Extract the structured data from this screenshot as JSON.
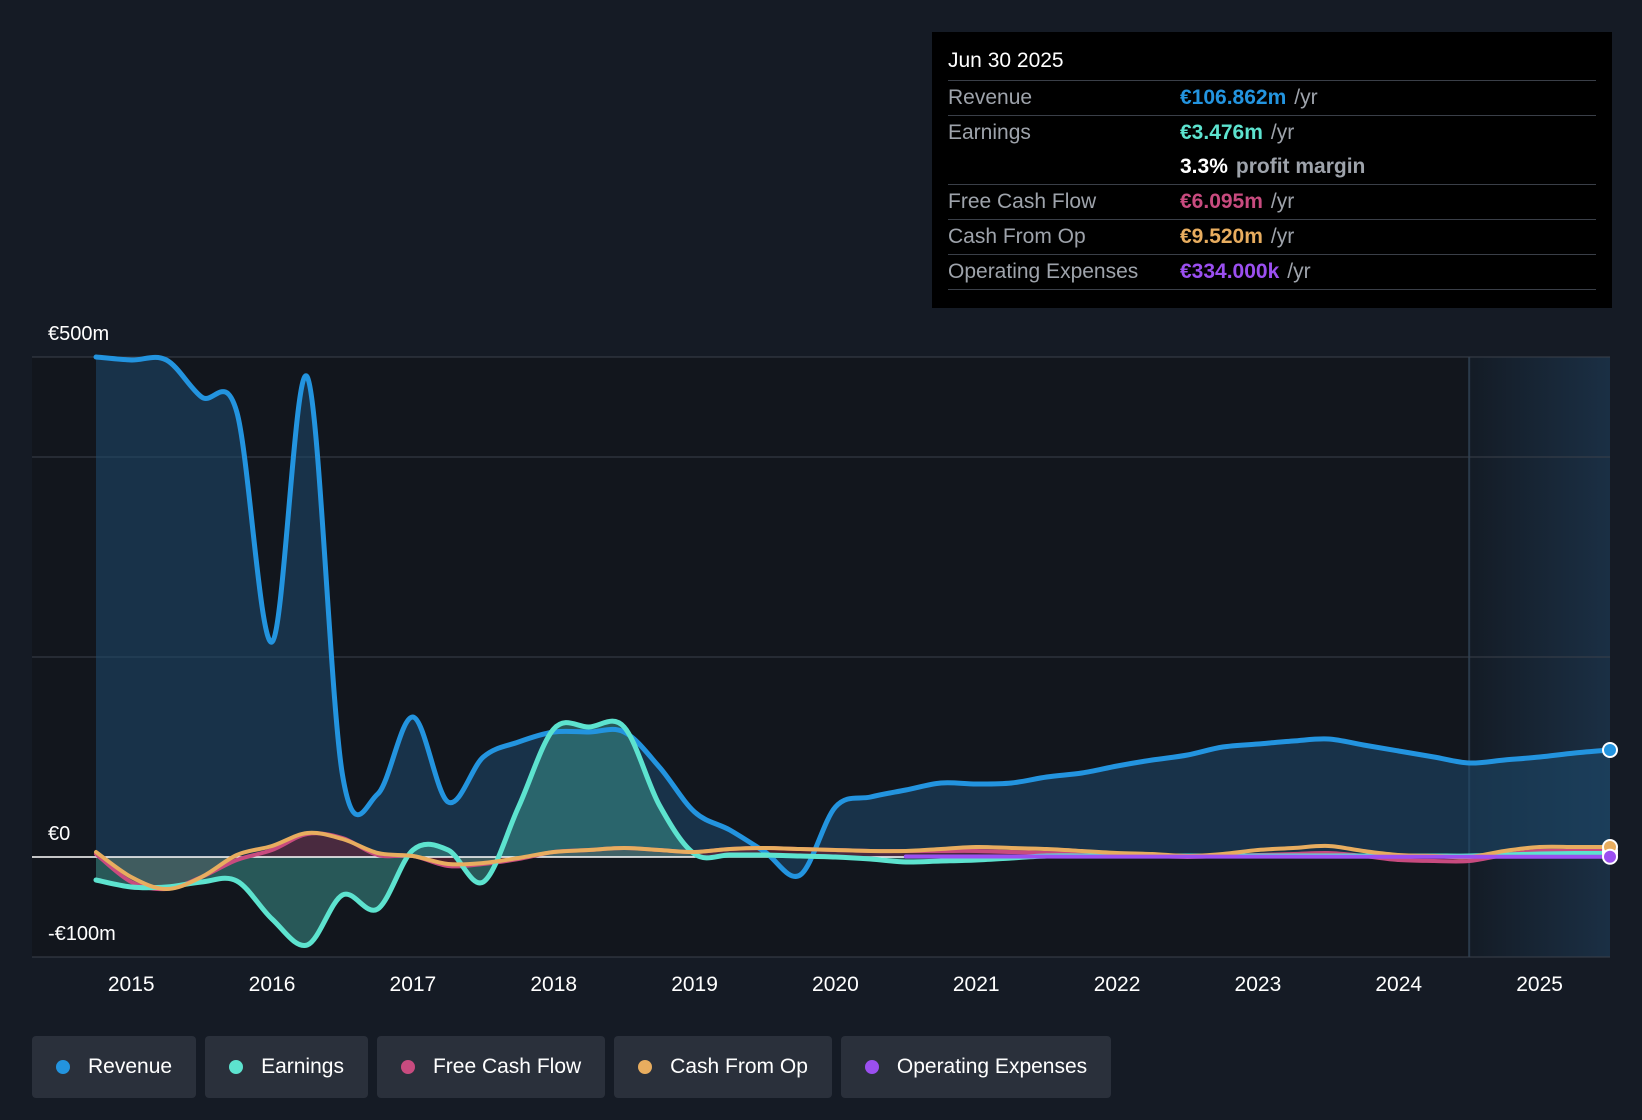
{
  "tooltip": {
    "date": "Jun 30 2025",
    "rows": [
      {
        "label": "Revenue",
        "value": "€106.862m",
        "unit": "/yr",
        "color": "#2394df"
      },
      {
        "label": "Earnings",
        "value": "€3.476m",
        "unit": "/yr",
        "color": "#5de3cf"
      },
      {
        "label": "",
        "value": "3.3%",
        "unit": "profit margin",
        "color": "#ffffff"
      },
      {
        "label": "Free Cash Flow",
        "value": "€6.095m",
        "unit": "/yr",
        "color": "#c84b7f"
      },
      {
        "label": "Cash From Op",
        "value": "€9.520m",
        "unit": "/yr",
        "color": "#e8ad5f"
      },
      {
        "label": "Operating Expenses",
        "value": "€334.000k",
        "unit": "/yr",
        "color": "#9b4ff0"
      }
    ]
  },
  "legend": [
    {
      "label": "Revenue",
      "color": "#2394df"
    },
    {
      "label": "Earnings",
      "color": "#5de3cf"
    },
    {
      "label": "Free Cash Flow",
      "color": "#c84b7f"
    },
    {
      "label": "Cash From Op",
      "color": "#e8ad5f"
    },
    {
      "label": "Operating Expenses",
      "color": "#9b4ff0"
    }
  ],
  "chart_data": {
    "type": "area",
    "xlabel": "",
    "ylabel": "",
    "ylim": [
      -100,
      500
    ],
    "xlim": [
      2014.75,
      2025.5
    ],
    "y_tick_labels": [
      {
        "value": 500,
        "label": "€500m"
      },
      {
        "value": 0,
        "label": "€0"
      },
      {
        "value": -100,
        "label": "-€100m"
      }
    ],
    "x_tick_labels": [
      "2015",
      "2016",
      "2017",
      "2018",
      "2019",
      "2020",
      "2021",
      "2022",
      "2023",
      "2024",
      "2025"
    ],
    "x_ticks": [
      2015,
      2016,
      2017,
      2018,
      2019,
      2020,
      2021,
      2022,
      2023,
      2024,
      2025
    ],
    "gridlines": [
      500,
      400,
      200,
      0,
      -100
    ],
    "forecast_shade_start": 2024.5,
    "series": [
      {
        "name": "Revenue",
        "color": "#2394df",
        "fill": true,
        "points": [
          [
            2014.75,
            500
          ],
          [
            2015,
            497
          ],
          [
            2015.25,
            497
          ],
          [
            2015.5,
            460
          ],
          [
            2015.75,
            445
          ],
          [
            2016,
            215
          ],
          [
            2016.25,
            480
          ],
          [
            2016.5,
            82
          ],
          [
            2016.75,
            63
          ],
          [
            2017,
            140
          ],
          [
            2017.25,
            55
          ],
          [
            2017.5,
            100
          ],
          [
            2017.75,
            115
          ],
          [
            2018,
            125
          ],
          [
            2018.25,
            125
          ],
          [
            2018.5,
            125
          ],
          [
            2018.75,
            90
          ],
          [
            2019,
            45
          ],
          [
            2019.25,
            27
          ],
          [
            2019.5,
            5
          ],
          [
            2019.75,
            -18
          ],
          [
            2020,
            50
          ],
          [
            2020.25,
            60
          ],
          [
            2020.5,
            67
          ],
          [
            2020.75,
            74
          ],
          [
            2021,
            73
          ],
          [
            2021.25,
            74
          ],
          [
            2021.5,
            80
          ],
          [
            2021.75,
            84
          ],
          [
            2022,
            91
          ],
          [
            2022.25,
            97
          ],
          [
            2022.5,
            102
          ],
          [
            2022.75,
            110
          ],
          [
            2023,
            113
          ],
          [
            2023.25,
            116
          ],
          [
            2023.5,
            118
          ],
          [
            2023.75,
            112
          ],
          [
            2024,
            106
          ],
          [
            2024.25,
            100
          ],
          [
            2024.5,
            94
          ],
          [
            2024.75,
            97
          ],
          [
            2025,
            100
          ],
          [
            2025.25,
            104
          ],
          [
            2025.5,
            107
          ]
        ]
      },
      {
        "name": "Earnings",
        "color": "#5de3cf",
        "fill": true,
        "points": [
          [
            2014.75,
            -23
          ],
          [
            2015,
            -30
          ],
          [
            2015.25,
            -30
          ],
          [
            2015.5,
            -25
          ],
          [
            2015.75,
            -24
          ],
          [
            2016,
            -62
          ],
          [
            2016.25,
            -88
          ],
          [
            2016.5,
            -38
          ],
          [
            2016.75,
            -52
          ],
          [
            2017,
            7
          ],
          [
            2017.25,
            7
          ],
          [
            2017.5,
            -25
          ],
          [
            2017.75,
            50
          ],
          [
            2018,
            128
          ],
          [
            2018.25,
            130
          ],
          [
            2018.5,
            130
          ],
          [
            2018.75,
            52
          ],
          [
            2019,
            3
          ],
          [
            2019.25,
            2
          ],
          [
            2019.5,
            2
          ],
          [
            2019.75,
            1
          ],
          [
            2020,
            0
          ],
          [
            2020.25,
            -2
          ],
          [
            2020.5,
            -5
          ],
          [
            2020.75,
            -4
          ],
          [
            2021,
            -3
          ],
          [
            2021.25,
            -1
          ],
          [
            2021.5,
            1
          ],
          [
            2021.75,
            1
          ],
          [
            2022,
            1
          ],
          [
            2022.25,
            1
          ],
          [
            2022.5,
            1
          ],
          [
            2022.75,
            1
          ],
          [
            2023,
            1
          ],
          [
            2023.25,
            1
          ],
          [
            2023.5,
            1
          ],
          [
            2023.75,
            1
          ],
          [
            2024,
            1
          ],
          [
            2024.25,
            1
          ],
          [
            2024.5,
            1
          ],
          [
            2024.75,
            2
          ],
          [
            2025,
            3
          ],
          [
            2025.25,
            3.5
          ],
          [
            2025.5,
            3.5
          ]
        ]
      },
      {
        "name": "Free Cash Flow",
        "color": "#c84b7f",
        "fill": true,
        "points": [
          [
            2014.75,
            3
          ],
          [
            2015,
            -25
          ],
          [
            2015.25,
            -32
          ],
          [
            2015.5,
            -20
          ],
          [
            2015.75,
            -3
          ],
          [
            2016,
            7
          ],
          [
            2016.25,
            23
          ],
          [
            2016.5,
            19
          ],
          [
            2016.75,
            2
          ],
          [
            2017,
            1
          ],
          [
            2017.25,
            -9
          ],
          [
            2017.5,
            -7
          ],
          [
            2017.75,
            -2
          ],
          [
            2018,
            5
          ],
          [
            2018.25,
            7
          ],
          [
            2018.5,
            9
          ],
          [
            2018.75,
            7
          ],
          [
            2019,
            5
          ],
          [
            2019.25,
            8
          ],
          [
            2019.5,
            9
          ],
          [
            2019.75,
            8
          ],
          [
            2020,
            7
          ],
          [
            2020.25,
            6
          ],
          [
            2020.5,
            6
          ],
          [
            2020.75,
            6
          ],
          [
            2021,
            6
          ],
          [
            2021.25,
            5
          ],
          [
            2021.5,
            4
          ],
          [
            2021.75,
            3
          ],
          [
            2022,
            2
          ],
          [
            2022.25,
            1
          ],
          [
            2022.5,
            0
          ],
          [
            2022.75,
            1
          ],
          [
            2023,
            2
          ],
          [
            2023.25,
            3
          ],
          [
            2023.5,
            4
          ],
          [
            2023.75,
            1
          ],
          [
            2024,
            -3
          ],
          [
            2024.25,
            -4
          ],
          [
            2024.5,
            -4
          ],
          [
            2024.75,
            2
          ],
          [
            2025,
            6
          ],
          [
            2025.25,
            6
          ],
          [
            2025.5,
            6
          ]
        ]
      },
      {
        "name": "Cash From Op",
        "color": "#e8ad5f",
        "fill": false,
        "points": [
          [
            2014.75,
            5
          ],
          [
            2015,
            -20
          ],
          [
            2015.25,
            -32
          ],
          [
            2015.5,
            -20
          ],
          [
            2015.75,
            2
          ],
          [
            2016,
            11
          ],
          [
            2016.25,
            24
          ],
          [
            2016.5,
            18
          ],
          [
            2016.75,
            4
          ],
          [
            2017,
            1
          ],
          [
            2017.25,
            -7
          ],
          [
            2017.5,
            -6
          ],
          [
            2017.75,
            -1
          ],
          [
            2018,
            5
          ],
          [
            2018.25,
            7
          ],
          [
            2018.5,
            9
          ],
          [
            2018.75,
            7
          ],
          [
            2019,
            5
          ],
          [
            2019.25,
            8
          ],
          [
            2019.5,
            9
          ],
          [
            2019.75,
            8
          ],
          [
            2020,
            7
          ],
          [
            2020.25,
            6
          ],
          [
            2020.5,
            6
          ],
          [
            2020.75,
            8
          ],
          [
            2021,
            10
          ],
          [
            2021.25,
            9
          ],
          [
            2021.5,
            8
          ],
          [
            2021.75,
            6
          ],
          [
            2022,
            4
          ],
          [
            2022.25,
            3
          ],
          [
            2022.5,
            1
          ],
          [
            2022.75,
            3
          ],
          [
            2023,
            7
          ],
          [
            2023.25,
            9
          ],
          [
            2023.5,
            11
          ],
          [
            2023.75,
            6
          ],
          [
            2024,
            2
          ],
          [
            2024.25,
            1
          ],
          [
            2024.5,
            0
          ],
          [
            2024.75,
            6
          ],
          [
            2025,
            10
          ],
          [
            2025.25,
            10
          ],
          [
            2025.5,
            10
          ]
        ]
      },
      {
        "name": "Operating Expenses",
        "color": "#9b4ff0",
        "fill": false,
        "points": [
          [
            2020.5,
            0.5
          ],
          [
            2021,
            0.5
          ],
          [
            2022,
            0.4
          ],
          [
            2023,
            0.4
          ],
          [
            2024,
            0.3
          ],
          [
            2025,
            0.3
          ],
          [
            2025.5,
            0.3
          ]
        ]
      }
    ]
  }
}
